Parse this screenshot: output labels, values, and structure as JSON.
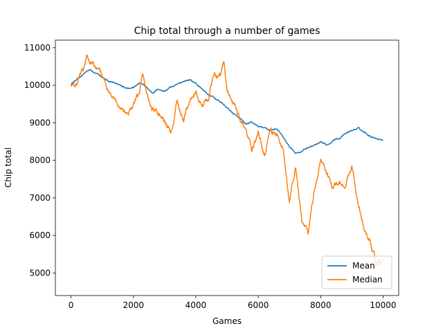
{
  "chart_data": {
    "type": "line",
    "title": "Chip total through a number of games",
    "xlabel": "Games",
    "ylabel": "Chip total",
    "xlim": [
      -500,
      10500
    ],
    "ylim": [
      4400,
      11200
    ],
    "xticks": [
      0,
      2000,
      4000,
      6000,
      8000,
      10000
    ],
    "xtick_labels": [
      "0",
      "2000",
      "4000",
      "6000",
      "8000",
      "10000"
    ],
    "yticks": [
      5000,
      6000,
      7000,
      8000,
      9000,
      10000,
      11000
    ],
    "ytick_labels": [
      "5000",
      "6000",
      "7000",
      "8000",
      "9000",
      "10000",
      "11000"
    ],
    "grid": false,
    "legend_position": "lower-right",
    "colors": {
      "mean": "#1f77b4",
      "median": "#ff7f0e",
      "axes": "#000000",
      "background": "#ffffff",
      "legend_border": "#cccccc"
    },
    "series": [
      {
        "name": "Mean",
        "color": "#1f77b4",
        "noise": 25,
        "x": [
          0,
          200,
          400,
          600,
          800,
          1000,
          1200,
          1400,
          1600,
          1800,
          2000,
          2200,
          2400,
          2600,
          2800,
          3000,
          3200,
          3400,
          3600,
          3800,
          4000,
          4200,
          4400,
          4600,
          4800,
          5000,
          5200,
          5400,
          5600,
          5800,
          6000,
          6200,
          6400,
          6600,
          6800,
          7000,
          7200,
          7400,
          7600,
          7800,
          8000,
          8200,
          8400,
          8600,
          8800,
          9000,
          9200,
          9400,
          9600,
          9800,
          10000
        ],
        "y": [
          10050,
          10150,
          10300,
          10400,
          10300,
          10200,
          10100,
          10050,
          10000,
          9950,
          9950,
          10050,
          9950,
          9800,
          9900,
          9850,
          9950,
          10000,
          10100,
          10150,
          10050,
          9900,
          9750,
          9650,
          9550,
          9400,
          9250,
          9100,
          8950,
          9000,
          8900,
          8850,
          8800,
          8850,
          8600,
          8350,
          8200,
          8250,
          8350,
          8400,
          8450,
          8400,
          8550,
          8600,
          8700,
          8800,
          8850,
          8750,
          8650,
          8600,
          8550
        ]
      },
      {
        "name": "Median",
        "color": "#ff7f0e",
        "noise": 90,
        "x": [
          0,
          200,
          400,
          500,
          600,
          800,
          1000,
          1200,
          1400,
          1600,
          1800,
          2000,
          2200,
          2300,
          2400,
          2600,
          2800,
          3000,
          3200,
          3400,
          3600,
          3800,
          4000,
          4200,
          4400,
          4600,
          4800,
          4900,
          5000,
          5200,
          5400,
          5600,
          5800,
          6000,
          6200,
          6400,
          6600,
          6800,
          7000,
          7200,
          7400,
          7600,
          7800,
          8000,
          8200,
          8400,
          8600,
          8800,
          9000,
          9200,
          9400,
          9600,
          9800,
          10000
        ],
        "y": [
          10000,
          10050,
          10400,
          10750,
          10550,
          10450,
          10250,
          9800,
          9500,
          9400,
          9250,
          9450,
          9750,
          10250,
          9850,
          9350,
          9200,
          9000,
          8700,
          9500,
          9050,
          9600,
          9800,
          9450,
          9700,
          10250,
          10300,
          10650,
          9800,
          9550,
          9150,
          8800,
          8200,
          8700,
          8100,
          8900,
          8600,
          8200,
          6900,
          7800,
          6400,
          6100,
          7200,
          8000,
          7700,
          7200,
          7500,
          7300,
          7900,
          6800,
          6200,
          5800,
          5200,
          5300
        ]
      }
    ]
  }
}
